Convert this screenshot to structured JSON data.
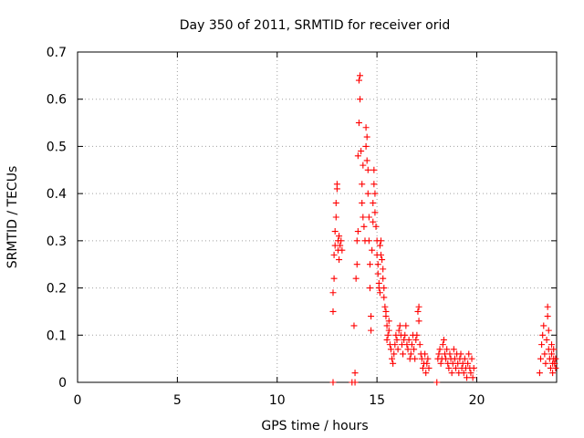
{
  "chart_data": {
    "type": "scatter",
    "title": "Day 350 of 2011, SRMTID for receiver orid",
    "xlabel": "GPS time / hours",
    "ylabel": "SRMTID / TECUs",
    "xlim": [
      0,
      24
    ],
    "ylim": [
      0,
      0.7
    ],
    "xticks": [
      "0",
      "5",
      "10",
      "15",
      "20"
    ],
    "yticks": [
      "0",
      "0.1",
      "0.2",
      "0.3",
      "0.4",
      "0.5",
      "0.6",
      "0.7"
    ],
    "grid": true,
    "marker": "plus",
    "color": "#ff0000",
    "series": [
      {
        "name": "SRMTID",
        "points": [
          [
            12.8,
            0.0
          ],
          [
            13.75,
            0.0
          ],
          [
            13.9,
            0.0
          ],
          [
            18.0,
            0.0
          ],
          [
            12.8,
            0.15
          ],
          [
            12.8,
            0.19
          ],
          [
            12.85,
            0.22
          ],
          [
            12.85,
            0.27
          ],
          [
            12.9,
            0.29
          ],
          [
            12.9,
            0.32
          ],
          [
            12.95,
            0.35
          ],
          [
            12.95,
            0.38
          ],
          [
            13.0,
            0.41
          ],
          [
            13.0,
            0.42
          ],
          [
            13.05,
            0.28
          ],
          [
            13.05,
            0.3
          ],
          [
            13.1,
            0.31
          ],
          [
            13.1,
            0.26
          ],
          [
            13.15,
            0.29
          ],
          [
            13.2,
            0.3
          ],
          [
            13.25,
            0.28
          ],
          [
            13.85,
            0.12
          ],
          [
            13.9,
            0.02
          ],
          [
            13.95,
            0.22
          ],
          [
            14.0,
            0.25
          ],
          [
            14.0,
            0.3
          ],
          [
            14.05,
            0.32
          ],
          [
            14.05,
            0.48
          ],
          [
            14.1,
            0.55
          ],
          [
            14.1,
            0.64
          ],
          [
            14.15,
            0.65
          ],
          [
            14.15,
            0.6
          ],
          [
            14.2,
            0.49
          ],
          [
            14.25,
            0.42
          ],
          [
            14.25,
            0.38
          ],
          [
            14.3,
            0.35
          ],
          [
            14.3,
            0.46
          ],
          [
            14.35,
            0.33
          ],
          [
            14.4,
            0.3
          ],
          [
            14.45,
            0.5
          ],
          [
            14.45,
            0.54
          ],
          [
            14.5,
            0.52
          ],
          [
            14.5,
            0.47
          ],
          [
            14.55,
            0.45
          ],
          [
            14.55,
            0.4
          ],
          [
            14.6,
            0.35
          ],
          [
            14.6,
            0.3
          ],
          [
            14.65,
            0.25
          ],
          [
            14.65,
            0.2
          ],
          [
            14.7,
            0.14
          ],
          [
            14.7,
            0.11
          ],
          [
            14.75,
            0.28
          ],
          [
            14.8,
            0.34
          ],
          [
            14.8,
            0.38
          ],
          [
            14.85,
            0.45
          ],
          [
            14.85,
            0.42
          ],
          [
            14.9,
            0.4
          ],
          [
            14.9,
            0.36
          ],
          [
            14.95,
            0.33
          ],
          [
            15.0,
            0.3
          ],
          [
            15.0,
            0.27
          ],
          [
            15.05,
            0.25
          ],
          [
            15.05,
            0.23
          ],
          [
            15.1,
            0.21
          ],
          [
            15.1,
            0.2
          ],
          [
            15.15,
            0.19
          ],
          [
            15.15,
            0.29
          ],
          [
            15.2,
            0.3
          ],
          [
            15.2,
            0.27
          ],
          [
            15.25,
            0.26
          ],
          [
            15.3,
            0.24
          ],
          [
            15.3,
            0.22
          ],
          [
            15.35,
            0.2
          ],
          [
            15.35,
            0.18
          ],
          [
            15.4,
            0.16
          ],
          [
            15.45,
            0.14
          ],
          [
            15.45,
            0.15
          ],
          [
            15.5,
            0.12
          ],
          [
            15.5,
            0.09
          ],
          [
            15.55,
            0.1
          ],
          [
            15.6,
            0.13
          ],
          [
            15.6,
            0.11
          ],
          [
            15.65,
            0.08
          ],
          [
            15.7,
            0.07
          ],
          [
            15.75,
            0.05
          ],
          [
            15.8,
            0.04
          ],
          [
            15.85,
            0.06
          ],
          [
            15.9,
            0.08
          ],
          [
            15.95,
            0.1
          ],
          [
            16.0,
            0.09
          ],
          [
            16.05,
            0.07
          ],
          [
            16.1,
            0.11
          ],
          [
            16.15,
            0.12
          ],
          [
            16.2,
            0.1
          ],
          [
            16.25,
            0.08
          ],
          [
            16.3,
            0.06
          ],
          [
            16.35,
            0.09
          ],
          [
            16.4,
            0.1
          ],
          [
            16.45,
            0.12
          ],
          [
            16.5,
            0.08
          ],
          [
            16.55,
            0.07
          ],
          [
            16.6,
            0.09
          ],
          [
            16.65,
            0.05
          ],
          [
            16.7,
            0.06
          ],
          [
            16.75,
            0.08
          ],
          [
            16.8,
            0.1
          ],
          [
            16.85,
            0.07
          ],
          [
            16.9,
            0.05
          ],
          [
            16.95,
            0.09
          ],
          [
            17.0,
            0.1
          ],
          [
            17.05,
            0.15
          ],
          [
            17.1,
            0.16
          ],
          [
            17.1,
            0.13
          ],
          [
            17.15,
            0.08
          ],
          [
            17.2,
            0.06
          ],
          [
            17.25,
            0.05
          ],
          [
            17.3,
            0.03
          ],
          [
            17.35,
            0.04
          ],
          [
            17.4,
            0.06
          ],
          [
            17.45,
            0.02
          ],
          [
            17.5,
            0.04
          ],
          [
            17.55,
            0.05
          ],
          [
            17.6,
            0.03
          ],
          [
            18.05,
            0.05
          ],
          [
            18.1,
            0.06
          ],
          [
            18.15,
            0.07
          ],
          [
            18.2,
            0.04
          ],
          [
            18.25,
            0.05
          ],
          [
            18.3,
            0.08
          ],
          [
            18.35,
            0.09
          ],
          [
            18.4,
            0.06
          ],
          [
            18.45,
            0.05
          ],
          [
            18.5,
            0.07
          ],
          [
            18.55,
            0.04
          ],
          [
            18.6,
            0.03
          ],
          [
            18.65,
            0.06
          ],
          [
            18.7,
            0.05
          ],
          [
            18.75,
            0.02
          ],
          [
            18.8,
            0.04
          ],
          [
            18.85,
            0.07
          ],
          [
            18.9,
            0.05
          ],
          [
            18.95,
            0.03
          ],
          [
            19.0,
            0.06
          ],
          [
            19.05,
            0.04
          ],
          [
            19.1,
            0.02
          ],
          [
            19.15,
            0.05
          ],
          [
            19.2,
            0.06
          ],
          [
            19.25,
            0.03
          ],
          [
            19.3,
            0.04
          ],
          [
            19.35,
            0.02
          ],
          [
            19.4,
            0.05
          ],
          [
            19.45,
            0.03
          ],
          [
            19.5,
            0.01
          ],
          [
            19.55,
            0.04
          ],
          [
            19.6,
            0.06
          ],
          [
            19.65,
            0.03
          ],
          [
            19.7,
            0.02
          ],
          [
            19.75,
            0.05
          ],
          [
            19.8,
            0.01
          ],
          [
            19.85,
            0.03
          ],
          [
            23.15,
            0.02
          ],
          [
            23.2,
            0.05
          ],
          [
            23.25,
            0.08
          ],
          [
            23.3,
            0.1
          ],
          [
            23.35,
            0.12
          ],
          [
            23.4,
            0.06
          ],
          [
            23.45,
            0.04
          ],
          [
            23.5,
            0.09
          ],
          [
            23.55,
            0.14
          ],
          [
            23.55,
            0.16
          ],
          [
            23.6,
            0.11
          ],
          [
            23.6,
            0.07
          ],
          [
            23.65,
            0.05
          ],
          [
            23.7,
            0.03
          ],
          [
            23.75,
            0.06
          ],
          [
            23.75,
            0.08
          ],
          [
            23.8,
            0.04
          ],
          [
            23.8,
            0.02
          ],
          [
            23.85,
            0.05
          ],
          [
            23.85,
            0.07
          ],
          [
            23.9,
            0.04
          ],
          [
            23.95,
            0.03
          ],
          [
            23.95,
            0.05
          ]
        ]
      }
    ]
  }
}
